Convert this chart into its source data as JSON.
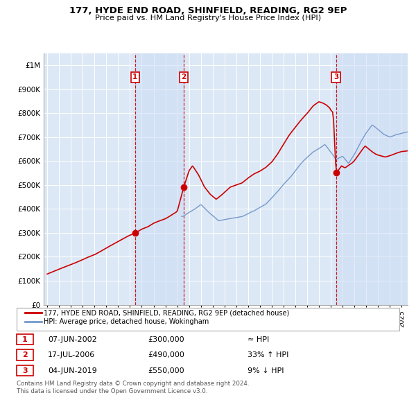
{
  "title": "177, HYDE END ROAD, SHINFIELD, READING, RG2 9EP",
  "subtitle": "Price paid vs. HM Land Registry's House Price Index (HPI)",
  "hpi_label": "HPI: Average price, detached house, Wokingham",
  "price_label": "177, HYDE END ROAD, SHINFIELD, READING, RG2 9EP (detached house)",
  "price_color": "#cc0000",
  "hpi_color": "#7799cc",
  "background_color": "#dce8f5",
  "transactions": [
    {
      "num": 1,
      "date": "07-JUN-2002",
      "price": 300000,
      "year": 2002.44,
      "hpi_rel": "≈ HPI"
    },
    {
      "num": 2,
      "date": "17-JUL-2006",
      "price": 490000,
      "year": 2006.54,
      "hpi_rel": "33% ↑ HPI"
    },
    {
      "num": 3,
      "date": "04-JUN-2019",
      "price": 550000,
      "year": 2019.44,
      "hpi_rel": "9% ↓ HPI"
    }
  ],
  "footer1": "Contains HM Land Registry data © Crown copyright and database right 2024.",
  "footer2": "This data is licensed under the Open Government Licence v3.0.",
  "ylim": [
    0,
    1050000
  ],
  "yticks": [
    0,
    100000,
    200000,
    300000,
    400000,
    500000,
    600000,
    700000,
    800000,
    900000,
    1000000
  ],
  "ytick_labels": [
    "£0",
    "£100K",
    "£200K",
    "£300K",
    "£400K",
    "£500K",
    "£600K",
    "£700K",
    "£800K",
    "£900K",
    "£1M"
  ],
  "xlim_start": 1994.7,
  "xlim_end": 2025.5,
  "xticks": [
    1995,
    1996,
    1997,
    1998,
    1999,
    2000,
    2001,
    2002,
    2003,
    2004,
    2005,
    2006,
    2007,
    2008,
    2009,
    2010,
    2011,
    2012,
    2013,
    2014,
    2015,
    2016,
    2017,
    2018,
    2019,
    2020,
    2021,
    2022,
    2023,
    2024,
    2025
  ]
}
